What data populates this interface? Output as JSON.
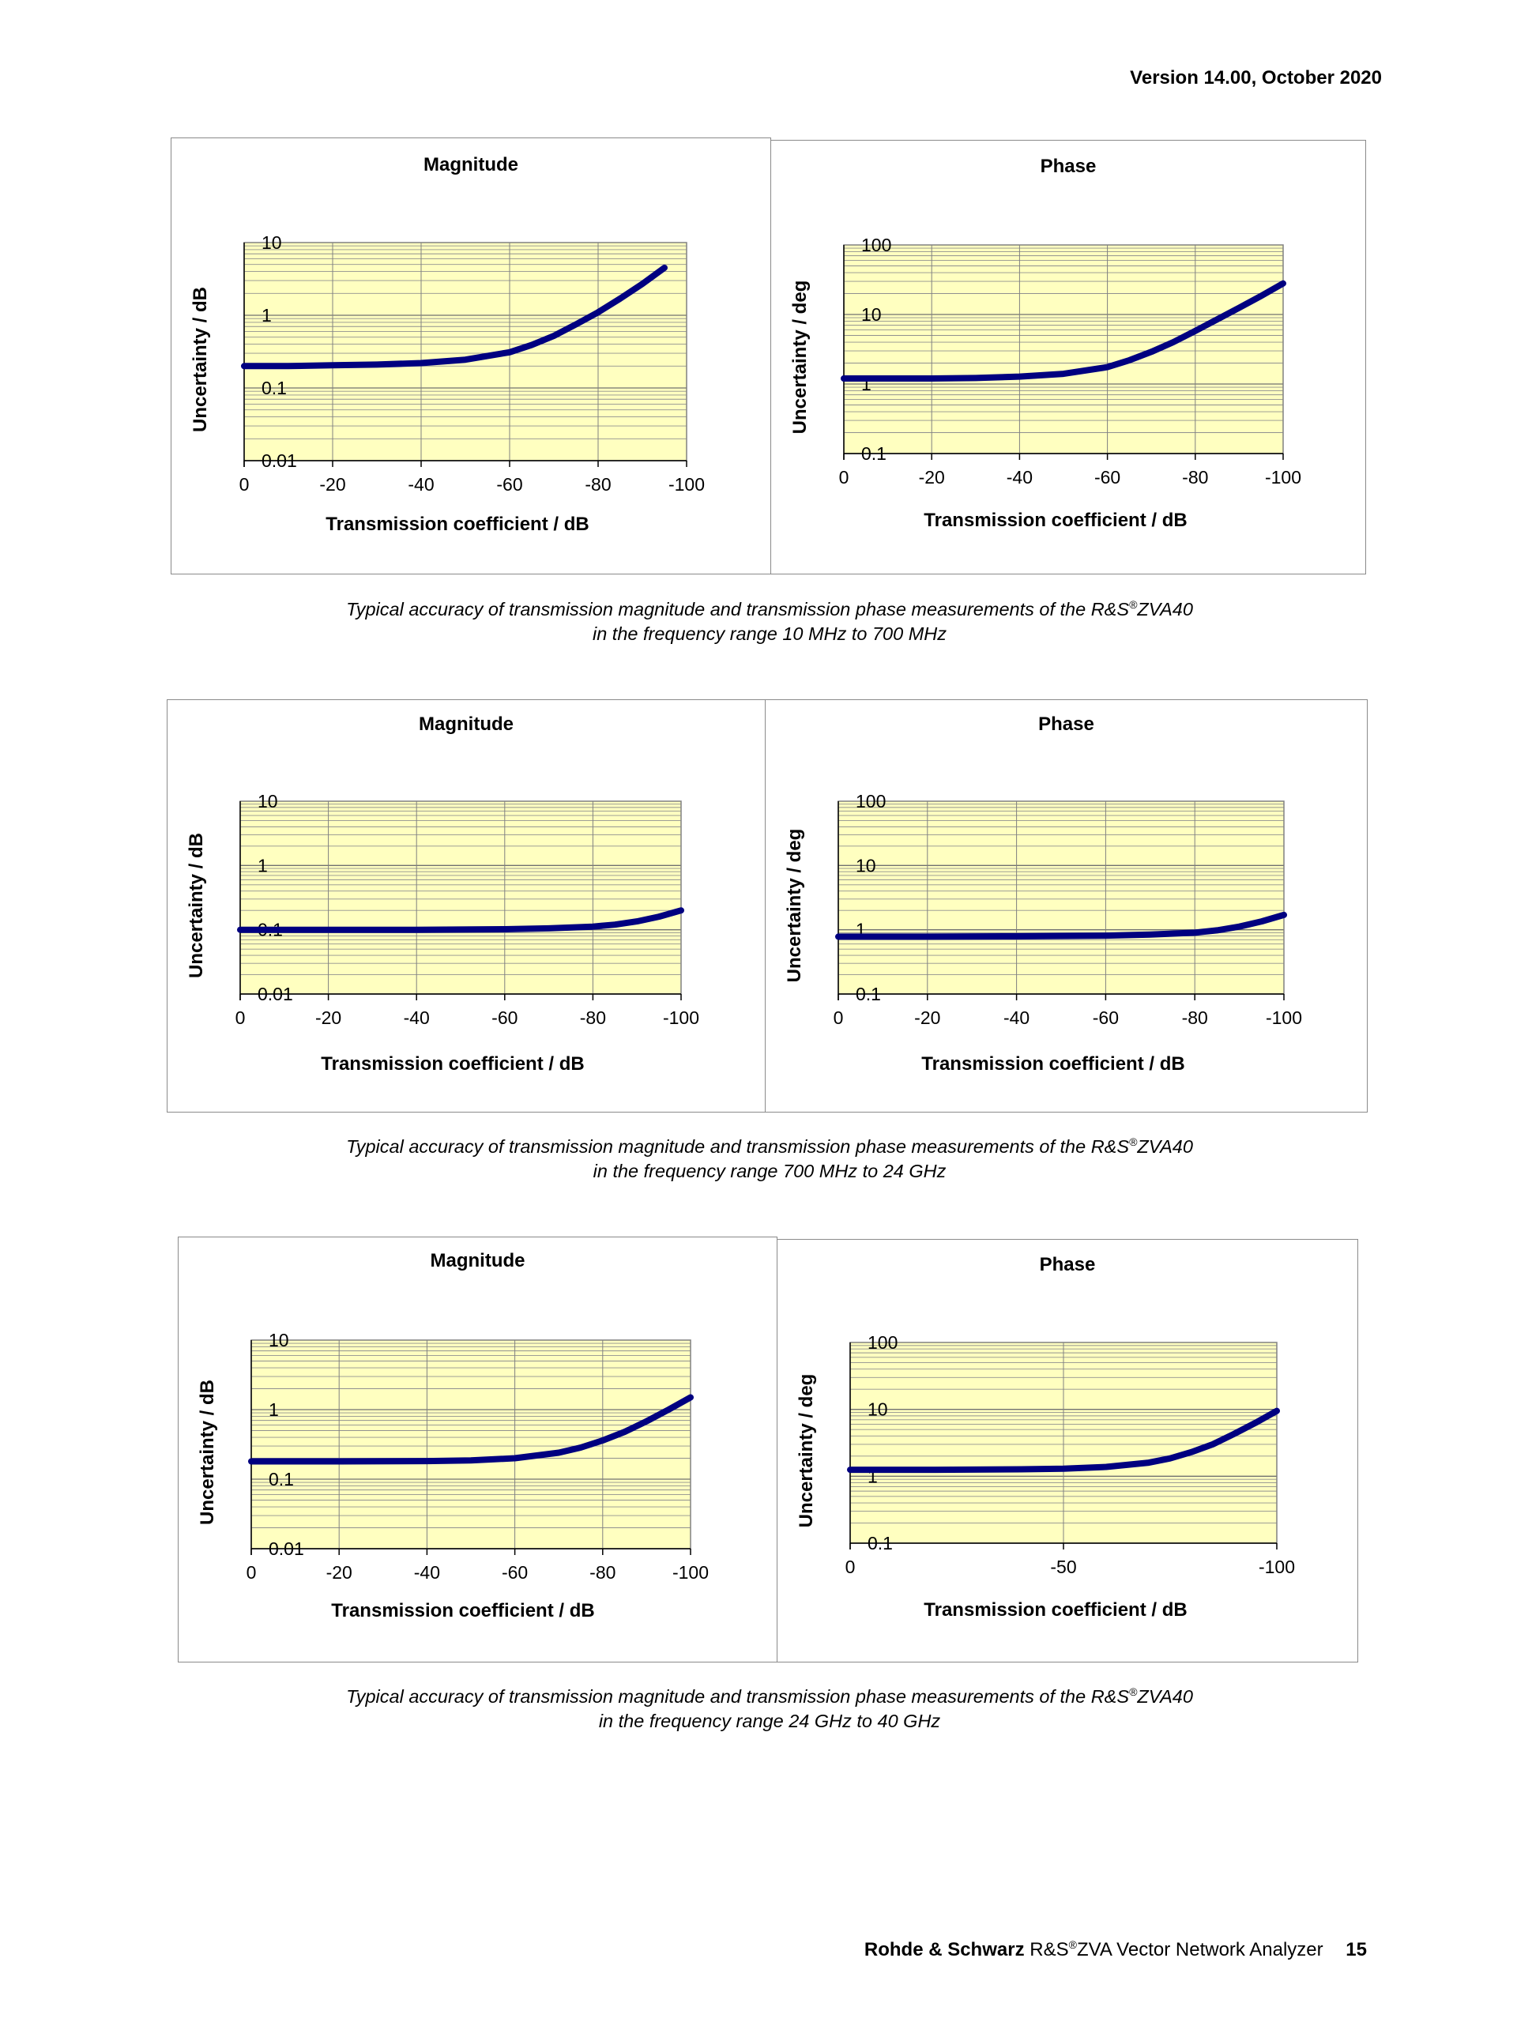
{
  "header": {
    "version": "Version 14.00, October 2020"
  },
  "figures": [
    {
      "caption": {
        "line1_pre": "Typical accuracy of transmission magnitude and transmission phase measurements of the R&S",
        "reg": "®",
        "line1_post": "ZVA40",
        "line2": "in the frequency range 10 MHz to 700 MHz"
      }
    },
    {
      "caption": {
        "line1_pre": "Typical accuracy of transmission magnitude and transmission phase measurements of the R&S",
        "reg": "®",
        "line1_post": "ZVA40",
        "line2": "in the frequency range 700 MHz to 24 GHz"
      }
    },
    {
      "caption": {
        "line1_pre": "Typical accuracy of transmission magnitude and transmission phase measurements of the R&S",
        "reg": "®",
        "line1_post": "ZVA40",
        "line2": "in the frequency range 24 GHz to 40 GHz"
      }
    }
  ],
  "chart_data": [
    {
      "type": "line",
      "title": "Magnitude",
      "xlabel": "Transmission coefficient / dB",
      "ylabel": "Uncertainty / dB",
      "xlim": [
        0,
        -100
      ],
      "ylim": [
        0.01,
        10
      ],
      "yscale": "log",
      "xticks": [
        "0",
        "-20",
        "-40",
        "-60",
        "-80",
        "-100"
      ],
      "yticks": [
        "10",
        "1",
        "0.1",
        "0.01"
      ],
      "series": [
        {
          "name": "uncertainty",
          "color": "#000080",
          "x": [
            0,
            -10,
            -20,
            -30,
            -40,
            -50,
            -60,
            -65,
            -70,
            -75,
            -80,
            -85,
            -90,
            -95
          ],
          "y": [
            0.2,
            0.2,
            0.205,
            0.21,
            0.22,
            0.245,
            0.31,
            0.39,
            0.52,
            0.75,
            1.1,
            1.7,
            2.7,
            4.5
          ]
        }
      ]
    },
    {
      "type": "line",
      "title": "Phase",
      "xlabel": "Transmission coefficient / dB",
      "ylabel": "Uncertainty / deg",
      "xlim": [
        0,
        -100
      ],
      "ylim": [
        0.1,
        100
      ],
      "yscale": "log",
      "xticks": [
        "0",
        "-20",
        "-40",
        "-60",
        "-80",
        "-100"
      ],
      "yticks": [
        "100",
        "10",
        "1",
        "0.1"
      ],
      "series": [
        {
          "name": "uncertainty",
          "color": "#000080",
          "x": [
            0,
            -10,
            -20,
            -30,
            -40,
            -50,
            -60,
            -65,
            -70,
            -75,
            -80,
            -85,
            -90,
            -95,
            -100
          ],
          "y": [
            1.2,
            1.2,
            1.2,
            1.22,
            1.28,
            1.4,
            1.75,
            2.2,
            2.9,
            4.0,
            5.8,
            8.5,
            12.5,
            18.5,
            28
          ]
        }
      ]
    },
    {
      "type": "line",
      "title": "Magnitude",
      "xlabel": "Transmission coefficient / dB",
      "ylabel": "Uncertainty / dB",
      "xlim": [
        0,
        -100
      ],
      "ylim": [
        0.01,
        10
      ],
      "yscale": "log",
      "xticks": [
        "0",
        "-20",
        "-40",
        "-60",
        "-80",
        "-100"
      ],
      "yticks": [
        "10",
        "1",
        "0.1",
        "0.01"
      ],
      "series": [
        {
          "name": "uncertainty",
          "color": "#000080",
          "x": [
            0,
            -20,
            -40,
            -60,
            -70,
            -80,
            -85,
            -90,
            -95,
            -100
          ],
          "y": [
            0.1,
            0.1,
            0.1,
            0.102,
            0.105,
            0.112,
            0.12,
            0.135,
            0.16,
            0.2
          ]
        }
      ]
    },
    {
      "type": "line",
      "title": "Phase",
      "xlabel": "Transmission coefficient / dB",
      "ylabel": "Uncertainty / deg",
      "xlim": [
        0,
        -100
      ],
      "ylim": [
        0.1,
        100
      ],
      "yscale": "log",
      "xticks": [
        "0",
        "-20",
        "-40",
        "-60",
        "-80",
        "-100"
      ],
      "yticks": [
        "100",
        "10",
        "1",
        "0.1"
      ],
      "series": [
        {
          "name": "uncertainty",
          "color": "#000080",
          "x": [
            0,
            -20,
            -40,
            -60,
            -70,
            -80,
            -85,
            -90,
            -95,
            -100
          ],
          "y": [
            0.78,
            0.78,
            0.79,
            0.81,
            0.84,
            0.9,
            0.98,
            1.12,
            1.35,
            1.7
          ]
        }
      ]
    },
    {
      "type": "line",
      "title": "Magnitude",
      "xlabel": "Transmission coefficient / dB",
      "ylabel": "Uncertainty / dB",
      "xlim": [
        0,
        -100
      ],
      "ylim": [
        0.01,
        10
      ],
      "yscale": "log",
      "xticks": [
        "0",
        "-20",
        "-40",
        "-60",
        "-80",
        "-100"
      ],
      "yticks": [
        "10",
        "1",
        "0.1",
        "0.01"
      ],
      "series": [
        {
          "name": "uncertainty",
          "color": "#000080",
          "x": [
            0,
            -20,
            -40,
            -50,
            -60,
            -70,
            -75,
            -80,
            -85,
            -90,
            -95,
            -100
          ],
          "y": [
            0.18,
            0.18,
            0.182,
            0.186,
            0.2,
            0.24,
            0.285,
            0.36,
            0.48,
            0.68,
            1.0,
            1.5
          ]
        }
      ]
    },
    {
      "type": "line",
      "title": "Phase",
      "xlabel": "Transmission coefficient / dB",
      "ylabel": "Uncertainty / deg",
      "xlim": [
        0,
        -100
      ],
      "ylim": [
        0.1,
        100
      ],
      "yscale": "log",
      "xticks": [
        "0",
        "-50",
        "-100"
      ],
      "yticks": [
        "100",
        "10",
        "1",
        "0.1"
      ],
      "series": [
        {
          "name": "uncertainty",
          "color": "#000080",
          "x": [
            0,
            -20,
            -40,
            -50,
            -60,
            -70,
            -75,
            -80,
            -85,
            -90,
            -95,
            -100
          ],
          "y": [
            1.25,
            1.25,
            1.27,
            1.3,
            1.38,
            1.6,
            1.85,
            2.3,
            3.0,
            4.3,
            6.3,
            9.5
          ]
        }
      ]
    }
  ],
  "footer": {
    "brand": "Rohde & Schwarz",
    "product_pre": "R&S",
    "reg": "®",
    "product_post": "ZVA Vector Network Analyzer",
    "page": "15"
  }
}
